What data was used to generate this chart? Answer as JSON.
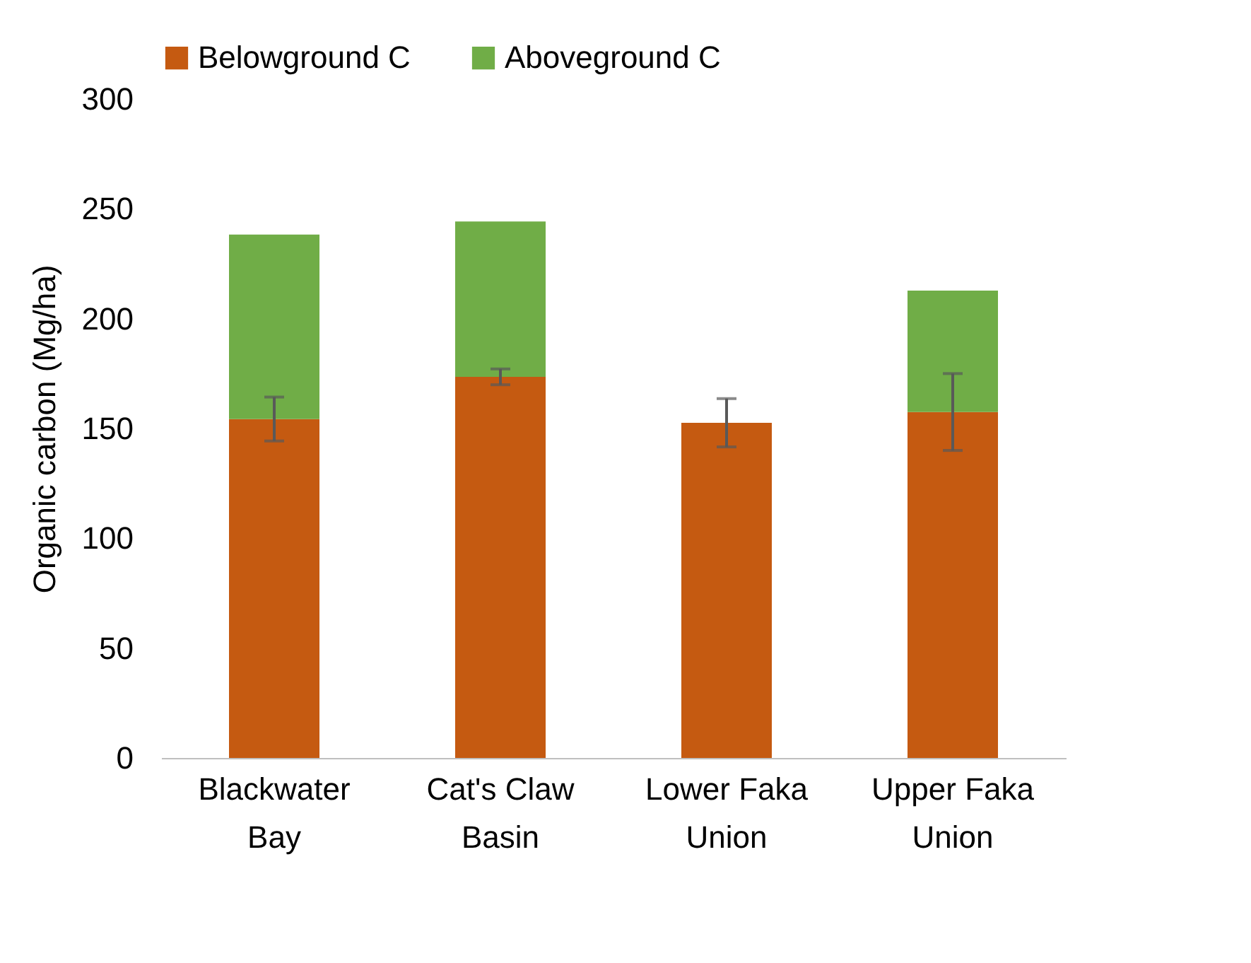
{
  "chart_data": {
    "type": "bar",
    "stacked": true,
    "ylabel": "Organic carbon (Mg/ha)",
    "categories": [
      "Blackwater Bay",
      "Cat's Claw Basin",
      "Lower Faka Union",
      "Upper Faka Union"
    ],
    "series": [
      {
        "name": "Belowground C",
        "color": "#c55a11",
        "values": [
          154.3,
          173.5,
          152.6,
          157.5
        ],
        "errors": [
          10,
          3.6,
          11,
          17.5
        ]
      },
      {
        "name": "Aboveground C",
        "color": "#70ad47",
        "values": [
          84,
          70.7,
          null,
          55.3
        ]
      }
    ],
    "ylim": [
      0,
      300
    ],
    "yticks": [
      0,
      50,
      100,
      150,
      200,
      250,
      300
    ],
    "grid": false,
    "legend": "top"
  }
}
